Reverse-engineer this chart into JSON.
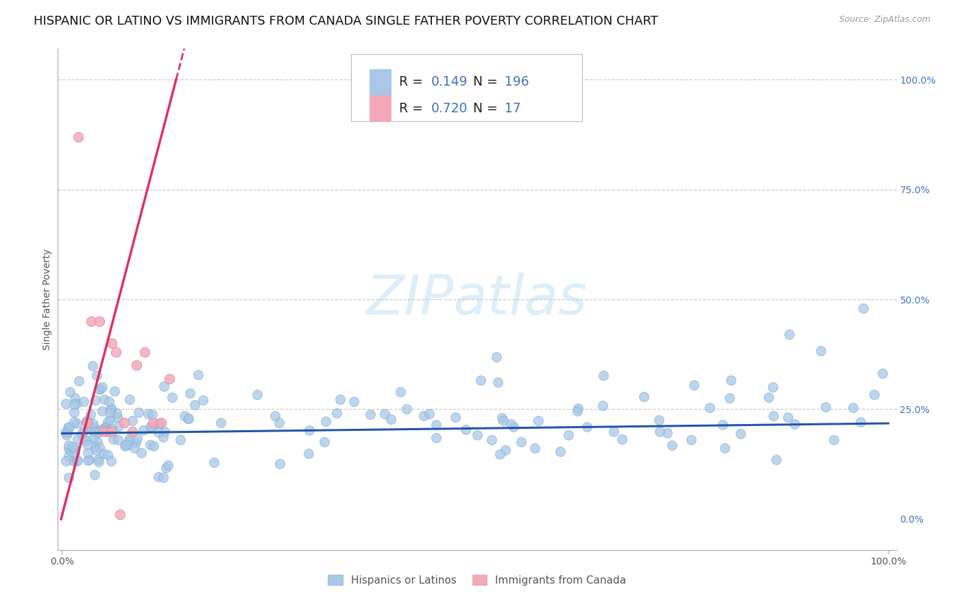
{
  "title": "HISPANIC OR LATINO VS IMMIGRANTS FROM CANADA SINGLE FATHER POVERTY CORRELATION CHART",
  "source": "Source: ZipAtlas.com",
  "ylabel": "Single Father Poverty",
  "series1_color": "#a8c8e8",
  "series1_edge": "#7aaad0",
  "series2_color": "#f4a8b8",
  "series2_edge": "#d88898",
  "trend1_color": "#2255aa",
  "trend2_color": "#e03060",
  "legend_r1": "0.149",
  "legend_n1": "196",
  "legend_r2": "0.720",
  "legend_n2": "17",
  "legend_label1": "Hispanics or Latinos",
  "legend_label2": "Immigrants from Canada",
  "watermark_text": "ZIPatlas",
  "background_color": "#ffffff",
  "grid_color": "#cccccc",
  "title_fontsize": 13,
  "text_blue": "#4472c4",
  "right_tick_color": "#4472c4"
}
